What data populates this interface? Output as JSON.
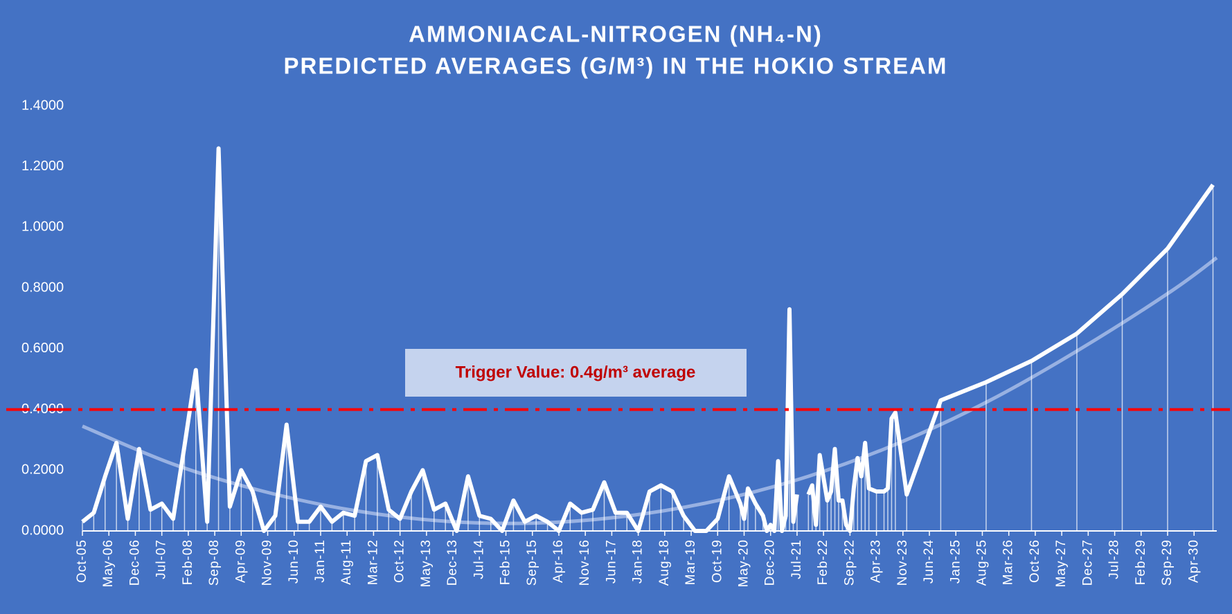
{
  "chart_data": {
    "type": "line",
    "title": "AMMONIACAL-NITROGEN (NH₄-N)",
    "subtitle": "PREDICTED AVERAGES (G/M³) IN THE HOKIO STREAM",
    "annotation": "Trigger Value: 0.4g/m³ average",
    "threshold": 0.4,
    "threshold_color": "#ff0000",
    "xlim": [
      "Oct-05",
      "Oct-30"
    ],
    "xticks": [
      "Oct-05",
      "May-06",
      "Dec-06",
      "Jul-07",
      "Feb-08",
      "Sep-08",
      "Apr-09",
      "Nov-09",
      "Jun-10",
      "Jan-11",
      "Aug-11",
      "Mar-12",
      "Oct-12",
      "May-13",
      "Dec-13",
      "Jul-14",
      "Feb-15",
      "Sep-15",
      "Apr-16",
      "Nov-16",
      "Jun-17",
      "Jan-18",
      "Aug-18",
      "Mar-19",
      "Oct-19",
      "May-20",
      "Dec-20",
      "Jul-21",
      "Feb-22",
      "Sep-22",
      "Apr-23",
      "Nov-23",
      "Jun-24",
      "Jan-25",
      "Aug-25",
      "Mar-26",
      "Oct-26",
      "May-27",
      "Dec-27",
      "Jul-28",
      "Feb-29",
      "Sep-29",
      "Apr-30"
    ],
    "ylim": [
      0,
      1.4
    ],
    "yticks": [
      {
        "value": 0,
        "label": "0.0000"
      },
      {
        "value": 0.2,
        "label": "0.2000"
      },
      {
        "value": 0.4,
        "label": "0.4000"
      },
      {
        "value": 0.6,
        "label": "0.6000"
      },
      {
        "value": 0.8,
        "label": "0.8000"
      },
      {
        "value": 1.0,
        "label": "1.0000"
      },
      {
        "value": 1.2,
        "label": "1.2000"
      },
      {
        "value": 1.4,
        "label": "1.4000"
      }
    ],
    "series": [
      {
        "color": "#ffffff",
        "x": [
          "Oct-05",
          "Jan-06",
          "Apr-06",
          "Jul-06",
          "Oct-06",
          "Jan-07",
          "Apr-07",
          "Jul-07",
          "Oct-07",
          "Jan-08",
          "Apr-08",
          "Jul-08",
          "Oct-08",
          "Jan-09",
          "Apr-09",
          "Jul-09",
          "Oct-09",
          "Jan-10",
          "Apr-10",
          "Jul-10",
          "Oct-10",
          "Jan-11",
          "Apr-11",
          "Jul-11",
          "Oct-11",
          "Jan-12",
          "Apr-12",
          "Jul-12",
          "Oct-12",
          "Jan-13",
          "Apr-13",
          "Jul-13",
          "Oct-13",
          "Jan-14",
          "Apr-14",
          "Jul-14",
          "Oct-14",
          "Jan-15",
          "Apr-15",
          "Jul-15",
          "Oct-15",
          "Jan-16",
          "Apr-16",
          "Jul-16",
          "Oct-16",
          "Jan-17",
          "Apr-17",
          "Jul-17",
          "Oct-17",
          "Jan-18",
          "Apr-18",
          "Jul-18",
          "Oct-18",
          "Jan-19",
          "Apr-19",
          "Jul-19",
          "Oct-19",
          "Jan-20",
          "Apr-20",
          "May-20",
          "Jun-20",
          "Aug-20",
          "Oct-20",
          "Nov-20",
          "Dec-20",
          "Jan-21",
          "Feb-21",
          "Mar-21",
          "Apr-21",
          "May-21",
          "Jun-21",
          "Jul-21",
          "Sep-21",
          "Oct-21",
          "Nov-21",
          "Dec-21",
          "Jan-22",
          "Mar-22",
          "Apr-22",
          "May-22",
          "Jun-22",
          "Jul-22",
          "Aug-22",
          "Sep-22",
          "Oct-22",
          "Nov-22",
          "Dec-22",
          "Jan-23",
          "Feb-23",
          "Apr-23",
          "Jun-23",
          "Jul-23",
          "Aug-23",
          "Sep-23",
          "Dec-23",
          "Sep-24",
          "Sep-25",
          "Sep-26",
          "Sep-27",
          "Sep-28",
          "Sep-29",
          "Sep-30"
        ],
        "values": [
          0.03,
          0.06,
          0.18,
          0.29,
          0.04,
          0.27,
          0.07,
          0.09,
          0.04,
          0.28,
          0.53,
          0.03,
          1.26,
          0.08,
          0.2,
          0.13,
          0,
          0.05,
          0.35,
          0.03,
          0.03,
          0.08,
          0.03,
          0.06,
          0.05,
          0.23,
          0.25,
          0.07,
          0.04,
          0.13,
          0.2,
          0.07,
          0.09,
          0,
          0.18,
          0.05,
          0.04,
          0,
          0.1,
          0.03,
          0.05,
          0.03,
          0,
          0.09,
          0.06,
          0.07,
          0.16,
          0.06,
          0.06,
          0,
          0.13,
          0.15,
          0.13,
          0.05,
          0,
          0,
          0.04,
          0.18,
          0.09,
          0.04,
          0.14,
          0.09,
          0.05,
          0,
          0.02,
          0,
          0.23,
          0,
          0.05,
          0.73,
          0.03,
          0.12,
          null,
          0.12,
          0.15,
          0.02,
          0.25,
          0.1,
          0.13,
          0.27,
          0.1,
          0.1,
          0.02,
          0,
          0.14,
          0.24,
          0.18,
          0.29,
          0.14,
          0.13,
          0.13,
          0.14,
          0.37,
          0.39,
          0.12,
          0.43,
          0.49,
          0.56,
          0.65,
          0.78,
          0.93,
          1.14
        ]
      },
      {
        "color": "#b4c7ec",
        "x": [
          "Oct-05",
          "Oct-07",
          "Oct-09",
          "Oct-11",
          "Oct-13",
          "Oct-15",
          "Oct-17",
          "Oct-19",
          "Oct-21",
          "Oct-23",
          "Oct-25",
          "Oct-27",
          "Oct-29",
          "Oct-30"
        ],
        "values": [
          0.345,
          0.22,
          0.13,
          0.067,
          0.032,
          0.026,
          0.049,
          0.1,
          0.18,
          0.29,
          0.43,
          0.6,
          0.79,
          0.9
        ]
      }
    ]
  }
}
